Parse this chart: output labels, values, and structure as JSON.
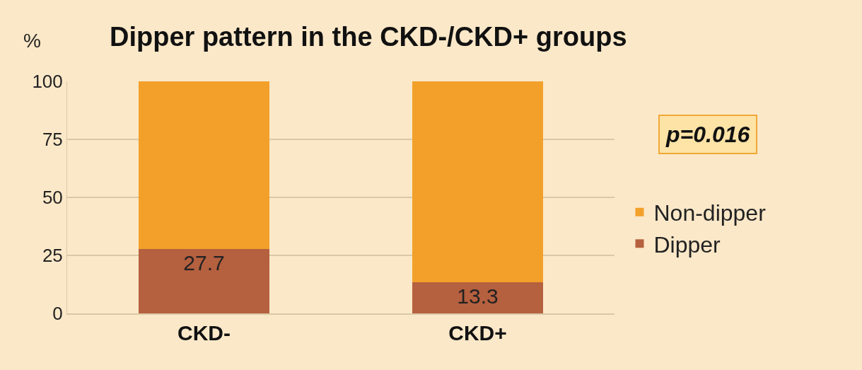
{
  "chart_data": {
    "type": "bar",
    "title": "Dipper pattern in the CKD-/CKD+ groups",
    "ylabel": "%",
    "categories": [
      "CKD-",
      "CKD+"
    ],
    "stacked": true,
    "series": [
      {
        "name": "Dipper",
        "color": "#b5603f",
        "values": [
          27.7,
          13.3
        ],
        "value_labels": [
          "27.7",
          "13.3"
        ]
      },
      {
        "name": "Non-dipper",
        "color": "#f2a02a",
        "values": [
          72.3,
          86.7
        ]
      }
    ],
    "ylim": [
      0,
      100
    ],
    "yticks": [
      0,
      25,
      50,
      75,
      100
    ],
    "grid": "y",
    "legend": "right",
    "annotations": [
      "p=0.016"
    ]
  }
}
